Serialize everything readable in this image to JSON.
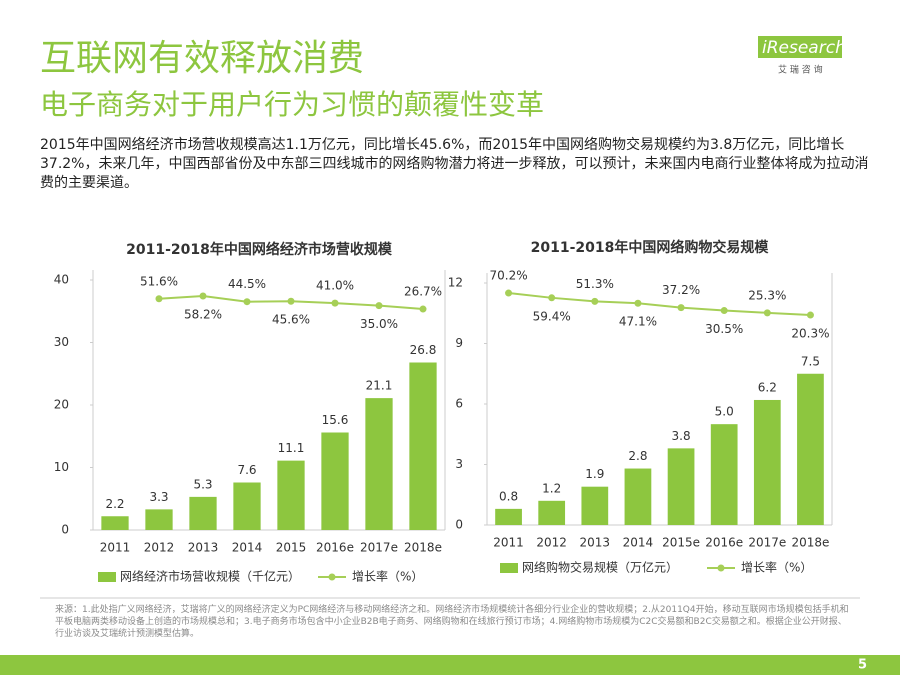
{
  "header": {
    "title": "互联网有效释放消费",
    "subtitle": "电子商务对于用户行为习惯的颠覆性变革",
    "logo": "iResearch",
    "logo_sub": "艾 瑞 咨 询"
  },
  "summary": "2015年中国网络经济市场营收规模高达1.1万亿元，同比增长45.6%，而2015年中国网络购物交易规模约为3.8万亿元，同比增长37.2%，未来几年，中国西部省份及中东部三四线城市的网络购物潜力将进一步释放，可以预计，未来国内电商行业整体将成为拉动消费的主要渠道。",
  "chart_data": [
    {
      "type": "bar",
      "title": "2011-2018年中国网络经济市场营收规模",
      "categories": [
        "2011",
        "2012",
        "2013",
        "2014",
        "2015",
        "2016e",
        "2017e",
        "2018e"
      ],
      "series": [
        {
          "name": "网络经济市场营收规模（千亿元）",
          "type": "bar",
          "color": "#8dc63f",
          "values": [
            2.2,
            3.3,
            5.3,
            7.6,
            11.1,
            15.6,
            21.1,
            26.8
          ]
        },
        {
          "name": "增长率（%）",
          "type": "line",
          "axis": "y2",
          "color": "#a6cf57",
          "values": [
            null,
            51.6,
            58.2,
            44.5,
            45.6,
            41.0,
            35.0,
            26.7
          ],
          "value_labels": [
            null,
            "51.6%",
            "58.2%",
            "44.5%",
            "45.6%",
            "41.0%",
            "35.0%",
            "26.7%"
          ]
        }
      ],
      "ylim": [
        0,
        40
      ],
      "yticks": [
        0,
        10,
        20,
        30,
        40
      ],
      "y2lim": [
        -508,
        97
      ]
    },
    {
      "type": "bar",
      "title": "2011-2018年中国网络购物交易规模",
      "categories": [
        "2011",
        "2012",
        "2013",
        "2014",
        "2015e",
        "2016e",
        "2017e",
        "2018e"
      ],
      "series": [
        {
          "name": "网络购物交易规模（万亿元）",
          "type": "bar",
          "color": "#8dc63f",
          "values": [
            0.8,
            1.2,
            1.9,
            2.8,
            3.8,
            5.0,
            6.2,
            7.5
          ],
          "value_labels": [
            "0.8",
            "1.2",
            "1.9",
            "2.8",
            "3.8",
            "5.0",
            "6.2",
            "7.5"
          ]
        },
        {
          "name": "增长率（%）",
          "type": "line",
          "axis": "y2",
          "color": "#a6cf57",
          "values": [
            70.2,
            59.4,
            51.3,
            47.1,
            37.2,
            30.5,
            25.3,
            20.3
          ],
          "value_labels": [
            "70.2%",
            "59.4%",
            "51.3%",
            "47.1%",
            "37.2%",
            "30.5%",
            "25.3%",
            "20.3%"
          ]
        }
      ],
      "ylim": [
        0,
        12
      ],
      "yticks": [
        0,
        3,
        6,
        9,
        12
      ],
      "y2lim": [
        -456,
        93
      ]
    }
  ],
  "footnote": "来源：1.此处指广义网络经济，艾瑞将广义的网络经济定义为PC网络经济与移动网络经济之和。网络经济市场规模统计各细分行业企业的营收规模；2.从2011Q4开始，移动互联网市场规模包括手机和平板电脑两类移动设备上创造的市场规模总和；3.电子商务市场包含中小企业B2B电子商务、网络购物和在线旅行预订市场；4.网络购物市场规模为C2C交易额和B2C交易额之和。根据企业公开财报、行业访谈及艾瑞统计预测模型估算。",
  "page_number": "5"
}
